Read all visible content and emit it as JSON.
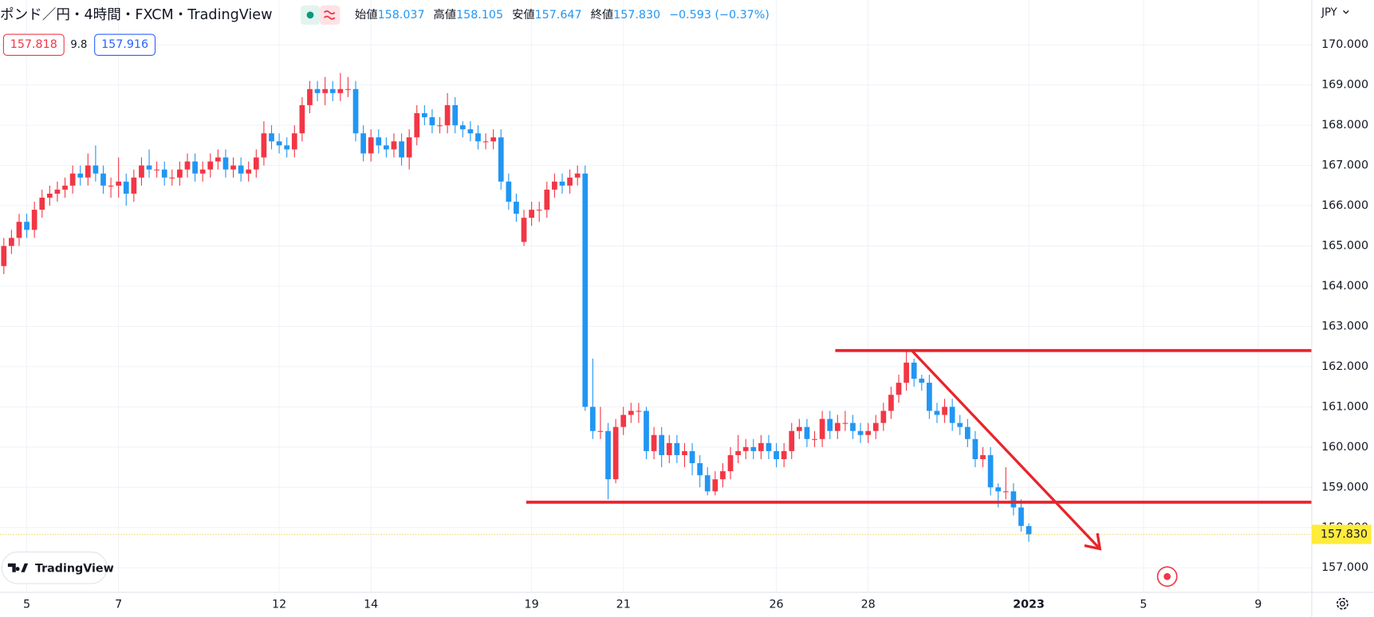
{
  "chart_data": {
    "type": "candlestick",
    "title": "ポンド／円・4時間・FXCM・TradingView",
    "legend_values": [
      {
        "label": "始値",
        "value": "158.037"
      },
      {
        "label": "高値",
        "value": "158.105"
      },
      {
        "label": "安値",
        "value": "157.647"
      },
      {
        "label": "終値",
        "value": "157.830"
      },
      {
        "label": "",
        "value": "−0.593 (−0.37%)"
      }
    ],
    "bid": "157.818",
    "spread": "9.8",
    "ask": "157.916",
    "currency": "JPY",
    "logo": "TradingView",
    "up_color": "#f23645",
    "down_color": "#2196f3",
    "open": [
      164.5,
      165.0,
      165.2,
      165.6,
      165.4,
      165.9,
      166.2,
      166.3,
      166.4,
      166.5,
      166.8,
      166.7,
      167.0,
      166.8,
      166.5,
      166.5,
      166.6,
      166.3,
      166.7,
      167.0,
      166.9,
      166.9,
      166.7,
      166.7,
      166.9,
      167.1,
      166.8,
      166.9,
      167.1,
      167.2,
      166.9,
      167.0,
      166.8,
      166.9,
      167.2,
      167.8,
      167.6,
      167.5,
      167.4,
      167.8,
      168.5,
      168.9,
      168.8,
      168.9,
      168.8,
      168.9,
      168.9,
      167.8,
      167.3,
      167.7,
      167.5,
      167.4,
      167.6,
      167.2,
      167.7,
      168.3,
      168.2,
      168.0,
      168.0,
      168.5,
      168.0,
      167.9,
      167.8,
      167.6,
      167.6,
      167.7,
      166.6,
      166.1,
      165.1,
      165.7,
      165.9,
      165.9,
      166.4,
      166.6,
      166.5,
      166.7,
      166.8,
      161.0,
      160.4,
      160.4,
      159.2,
      160.5,
      160.8,
      160.9,
      160.9,
      159.9,
      160.3,
      159.8,
      160.1,
      159.8,
      159.9,
      159.6,
      159.3,
      158.9,
      159.2,
      159.4,
      159.8,
      159.9,
      160.0,
      159.9,
      160.1,
      159.9,
      159.7,
      159.9,
      160.4,
      160.5,
      160.2,
      160.2,
      160.7,
      160.4,
      160.6,
      160.6,
      160.4,
      160.3,
      160.4,
      160.6,
      160.9,
      161.3,
      161.6,
      162.1,
      161.7,
      161.6,
      160.9,
      160.8,
      161.0,
      160.6,
      160.5,
      160.2,
      159.7,
      159.8,
      159.0,
      158.9,
      158.9,
      158.5,
      158.037
    ],
    "high": [
      165.2,
      165.4,
      165.8,
      165.8,
      166.1,
      166.4,
      166.5,
      166.6,
      166.7,
      167.0,
      167.0,
      167.3,
      167.5,
      167.0,
      166.7,
      167.2,
      166.8,
      166.9,
      167.2,
      167.4,
      167.1,
      167.1,
      166.9,
      167.1,
      167.3,
      167.3,
      167.1,
      167.3,
      167.4,
      167.4,
      167.2,
      167.2,
      167.1,
      167.4,
      168.1,
      168.0,
      167.8,
      167.7,
      168.0,
      168.7,
      169.1,
      169.1,
      169.2,
      169.1,
      169.3,
      169.2,
      169.1,
      168.0,
      167.9,
      167.9,
      167.7,
      167.8,
      167.8,
      167.9,
      168.5,
      168.5,
      168.4,
      168.2,
      168.8,
      168.7,
      168.1,
      168.1,
      168.0,
      167.8,
      167.9,
      167.9,
      166.8,
      166.3,
      165.9,
      166.1,
      166.1,
      166.6,
      166.8,
      166.8,
      166.9,
      167.0,
      167.0,
      162.2,
      161.0,
      160.6,
      160.7,
      161.0,
      161.1,
      161.1,
      161.0,
      160.5,
      160.5,
      160.3,
      160.3,
      160.1,
      160.1,
      159.8,
      159.5,
      159.4,
      159.6,
      160.0,
      160.3,
      160.2,
      160.2,
      160.3,
      160.3,
      160.1,
      160.1,
      160.6,
      160.7,
      160.7,
      160.4,
      160.9,
      160.9,
      160.8,
      160.9,
      160.8,
      160.6,
      160.6,
      160.8,
      161.1,
      161.5,
      161.8,
      162.4,
      162.2,
      161.8,
      161.8,
      161.1,
      161.2,
      161.2,
      160.8,
      160.7,
      160.4,
      160.0,
      160.0,
      159.1,
      159.5,
      159.1,
      158.7,
      158.105
    ],
    "low": [
      164.3,
      164.8,
      165.0,
      165.2,
      165.2,
      165.7,
      166.0,
      166.1,
      166.2,
      166.3,
      166.5,
      166.5,
      166.6,
      166.3,
      166.2,
      166.2,
      166.0,
      166.1,
      166.5,
      166.7,
      166.7,
      166.5,
      166.5,
      166.5,
      166.7,
      166.6,
      166.6,
      166.7,
      166.9,
      166.7,
      166.7,
      166.6,
      166.6,
      166.7,
      167.0,
      167.4,
      167.3,
      167.2,
      167.2,
      167.6,
      168.3,
      168.6,
      168.5,
      168.6,
      168.6,
      168.7,
      167.6,
      167.1,
      167.1,
      167.3,
      167.2,
      167.2,
      167.0,
      166.9,
      167.5,
      168.0,
      167.8,
      167.8,
      167.8,
      167.8,
      167.7,
      167.6,
      167.4,
      167.4,
      167.4,
      166.4,
      165.9,
      165.6,
      165.0,
      165.5,
      165.6,
      165.7,
      166.2,
      166.3,
      166.3,
      166.5,
      160.9,
      160.2,
      160.2,
      158.7,
      159.1,
      160.3,
      160.6,
      160.6,
      159.7,
      159.7,
      159.5,
      159.6,
      159.6,
      159.5,
      159.3,
      159.0,
      158.8,
      158.8,
      159.0,
      159.2,
      159.6,
      159.7,
      159.7,
      159.7,
      159.7,
      159.5,
      159.5,
      159.7,
      160.2,
      160.0,
      160.0,
      160.0,
      160.2,
      160.2,
      160.4,
      160.2,
      160.1,
      160.1,
      160.2,
      160.4,
      160.7,
      161.1,
      161.4,
      161.5,
      161.4,
      160.7,
      160.6,
      160.6,
      160.4,
      160.3,
      160.0,
      159.5,
      159.5,
      158.8,
      158.5,
      158.7,
      158.3,
      157.9,
      157.647
    ],
    "close": [
      165.0,
      165.2,
      165.6,
      165.4,
      165.9,
      166.2,
      166.3,
      166.4,
      166.5,
      166.8,
      166.7,
      167.0,
      166.8,
      166.5,
      166.5,
      166.6,
      166.3,
      166.7,
      167.0,
      166.9,
      166.9,
      166.7,
      166.7,
      166.9,
      167.1,
      166.8,
      166.9,
      167.1,
      167.2,
      166.9,
      167.0,
      166.8,
      166.9,
      167.2,
      167.8,
      167.6,
      167.5,
      167.4,
      167.8,
      168.5,
      168.9,
      168.8,
      168.9,
      168.8,
      168.9,
      168.9,
      167.8,
      167.3,
      167.7,
      167.5,
      167.4,
      167.6,
      167.2,
      167.7,
      168.3,
      168.2,
      168.0,
      168.0,
      168.5,
      168.0,
      167.9,
      167.8,
      167.6,
      167.6,
      167.7,
      166.6,
      166.1,
      165.8,
      165.7,
      165.9,
      165.9,
      166.4,
      166.6,
      166.5,
      166.7,
      166.8,
      161.0,
      160.4,
      160.4,
      159.2,
      160.5,
      160.8,
      160.9,
      160.9,
      159.9,
      160.3,
      159.8,
      160.1,
      159.8,
      159.9,
      159.6,
      159.3,
      158.9,
      159.2,
      159.4,
      159.8,
      159.9,
      160.0,
      159.9,
      160.1,
      159.9,
      159.7,
      159.9,
      160.4,
      160.5,
      160.2,
      160.2,
      160.7,
      160.4,
      160.6,
      160.6,
      160.4,
      160.3,
      160.4,
      160.6,
      160.9,
      161.3,
      161.6,
      162.1,
      161.7,
      161.6,
      160.9,
      160.8,
      161.0,
      160.6,
      160.5,
      160.2,
      159.7,
      159.8,
      159.0,
      158.9,
      158.9,
      158.5,
      158.04,
      157.83
    ],
    "xlim": [
      -0.5,
      171
    ],
    "ylim": [
      156.39,
      171.11
    ],
    "xticks": [
      {
        "value": 3,
        "label": "5"
      },
      {
        "value": 15,
        "label": "7"
      },
      {
        "value": 36,
        "label": "12"
      },
      {
        "value": 48,
        "label": "14"
      },
      {
        "value": 69,
        "label": "19"
      },
      {
        "value": 81,
        "label": "21"
      },
      {
        "value": 101,
        "label": "26"
      },
      {
        "value": 113,
        "label": "28"
      },
      {
        "value": 134,
        "label": "2023"
      },
      {
        "value": 149,
        "label": "5"
      },
      {
        "value": 164,
        "label": "9"
      }
    ],
    "yticks": [
      {
        "value": 157,
        "label": "157.000"
      },
      {
        "value": 158,
        "label": "158.000"
      },
      {
        "value": 159,
        "label": "159.000"
      },
      {
        "value": 160,
        "label": "160.000"
      },
      {
        "value": 161,
        "label": "161.000"
      },
      {
        "value": 162,
        "label": "162.000"
      },
      {
        "value": 163,
        "label": "163.000"
      },
      {
        "value": 164,
        "label": "164.000"
      },
      {
        "value": 165,
        "label": "165.000"
      },
      {
        "value": 166,
        "label": "166.000"
      },
      {
        "value": 167,
        "label": "167.000"
      },
      {
        "value": 168,
        "label": "168.000"
      },
      {
        "value": 169,
        "label": "169.000"
      },
      {
        "value": 170,
        "label": "170.000"
      }
    ],
    "grid": true,
    "last_price": {
      "value": 157.83,
      "label": "157.830"
    },
    "drawings": [
      {
        "type": "hline",
        "price": 162.4,
        "from": 108.7,
        "to": 171,
        "color": "#e8242b"
      },
      {
        "type": "hline",
        "price": 158.63,
        "from": 68.3,
        "to": 171,
        "color": "#e8242b"
      },
      {
        "type": "arrow",
        "price": [
          162.4,
          157.47
        ],
        "from": 118.7,
        "to": 143.3,
        "color": "#e8242b"
      }
    ]
  }
}
